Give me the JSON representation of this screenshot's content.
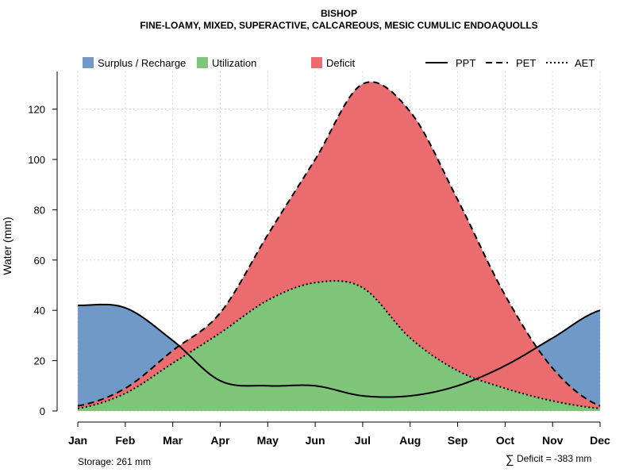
{
  "chart_data": {
    "type": "area",
    "title": "BISHOP",
    "subtitle": "FINE-LOAMY, MIXED, SUPERACTIVE, CALCAREOUS, MESIC CUMULIC ENDOAQUOLLS",
    "xlabel": "",
    "ylabel": "Water (mm)",
    "ylim": [
      0,
      135
    ],
    "yticks": [
      0,
      20,
      40,
      60,
      80,
      100,
      120
    ],
    "grid": true,
    "categories": [
      "Jan",
      "Feb",
      "Mar",
      "Apr",
      "May",
      "Jun",
      "Jul",
      "Aug",
      "Sep",
      "Oct",
      "Nov",
      "Dec"
    ],
    "series": [
      {
        "name": "PPT",
        "style": "solid",
        "values": [
          42,
          41,
          28,
          12,
          10,
          10,
          6,
          6,
          10,
          18,
          29,
          40
        ]
      },
      {
        "name": "PET",
        "style": "dashed",
        "values": [
          2,
          9,
          24,
          39,
          70,
          100,
          130,
          119,
          84,
          46,
          17,
          2
        ]
      },
      {
        "name": "AET",
        "style": "dotted",
        "values": [
          1,
          7,
          19,
          31,
          44,
          51,
          49,
          29,
          16,
          9,
          4,
          1
        ]
      }
    ],
    "fills": [
      {
        "name": "Surplus / Recharge",
        "color": "#7099c8"
      },
      {
        "name": "Utilization",
        "color": "#7ec57a"
      },
      {
        "name": "Deficit",
        "color": "#ea6c6e"
      }
    ],
    "legend": {
      "placement": "top",
      "fill_items": [
        "Surplus / Recharge",
        "Utilization",
        "Deficit"
      ],
      "line_items": [
        "PPT",
        "PET",
        "AET"
      ]
    },
    "annotations": {
      "storage": "Storage: 261 mm",
      "deficit_symbol": "∑",
      "deficit": "Deficit = -383 mm"
    }
  }
}
